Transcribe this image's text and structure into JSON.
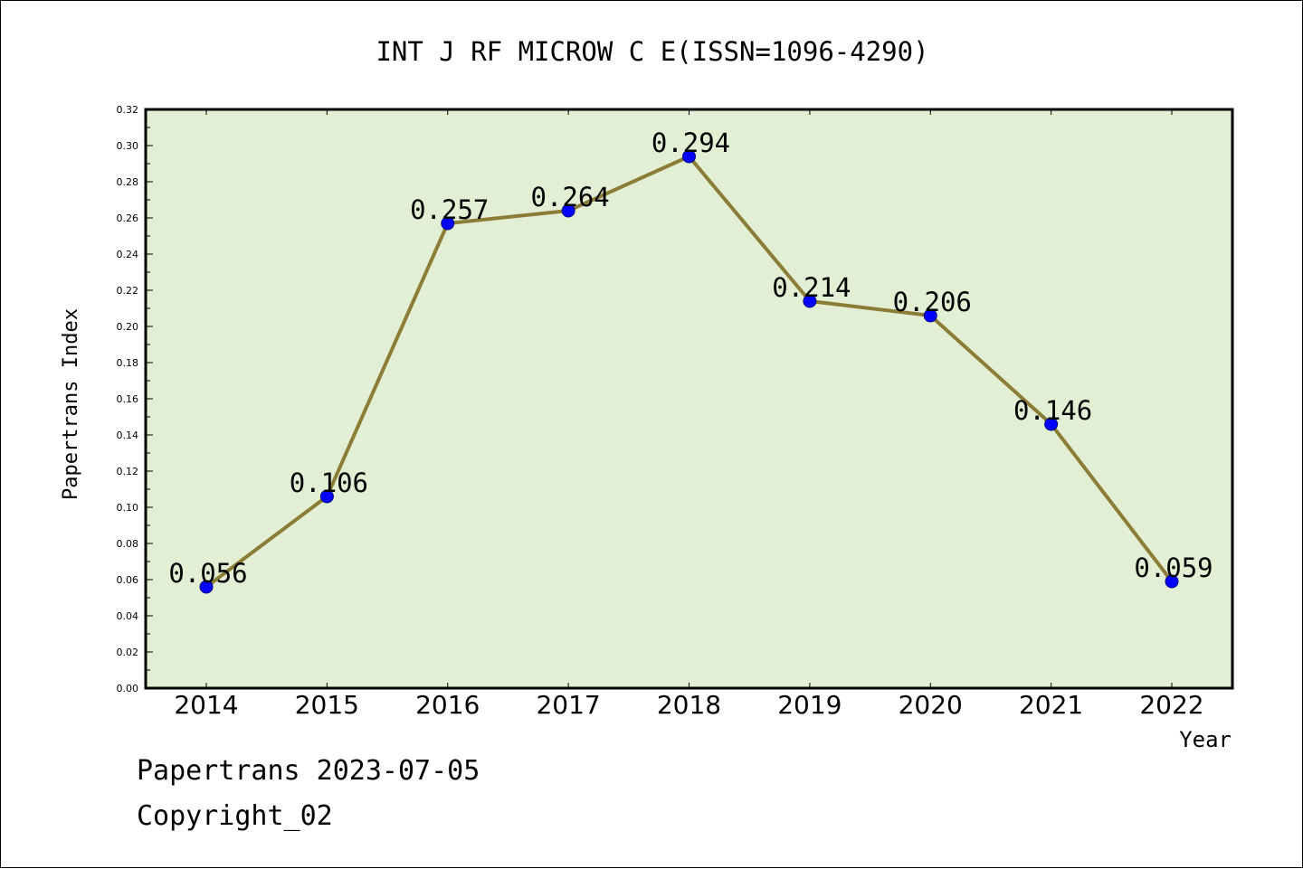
{
  "chart_data": {
    "type": "line",
    "title": "INT J RF MICROW C E(ISSN=1096-4290)",
    "xlabel": "Year",
    "ylabel": "Papertrans Index",
    "categories": [
      "2014",
      "2015",
      "2016",
      "2017",
      "2018",
      "2019",
      "2020",
      "2021",
      "2022"
    ],
    "series": [
      {
        "values": [
          0.056,
          0.106,
          0.257,
          0.264,
          0.294,
          0.214,
          0.206,
          0.146,
          0.059
        ],
        "labels": [
          "0.056",
          "0.106",
          "0.257",
          "0.264",
          "0.294",
          "0.214",
          "0.206",
          "0.146",
          "0.059"
        ]
      }
    ],
    "ylim": [
      0,
      0.32
    ],
    "yticks": [
      "0.00",
      "0.02",
      "0.04",
      "0.06",
      "0.08",
      "0.10",
      "0.12",
      "0.14",
      "0.16",
      "0.18",
      "0.20",
      "0.22",
      "0.24",
      "0.26",
      "0.28",
      "0.30",
      "0.32"
    ],
    "grid": false,
    "colors": {
      "plot_background": "#e2efd4",
      "line": "#8b7d35",
      "marker": "#0000ff"
    }
  },
  "footer": {
    "source": "Papertrans 2023-07-05",
    "copyright": "Copyright_02"
  }
}
